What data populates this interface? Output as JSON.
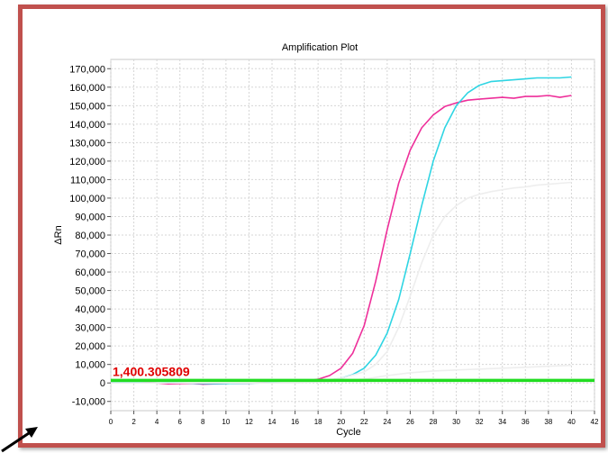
{
  "chart_data": {
    "type": "line",
    "title": "Amplification Plot",
    "xlabel": "Cycle",
    "ylabel": "ΔRn",
    "xlim": [
      0,
      42
    ],
    "ylim": [
      -15000,
      175000
    ],
    "grid": true,
    "x_ticks": [
      0,
      2,
      4,
      6,
      8,
      10,
      12,
      14,
      16,
      18,
      20,
      22,
      24,
      26,
      28,
      30,
      32,
      34,
      36,
      38,
      40,
      42
    ],
    "y_ticks": [
      -10000,
      0,
      10000,
      20000,
      30000,
      40000,
      50000,
      60000,
      70000,
      80000,
      90000,
      100000,
      110000,
      120000,
      130000,
      140000,
      150000,
      160000,
      170000
    ],
    "y_tick_labels": [
      "-10,000",
      "0",
      "10,000",
      "20,000",
      "30,000",
      "40,000",
      "50,000",
      "60,000",
      "70,000",
      "80,000",
      "90,000",
      "100,000",
      "110,000",
      "120,000",
      "130,000",
      "140,000",
      "150,000",
      "160,000",
      "170,000"
    ],
    "threshold": {
      "value": 1400.305809,
      "label": "1,400.305809",
      "color": "#22dd22"
    },
    "series": [
      {
        "color": "#ee2f9a",
        "x": [
          0,
          1,
          2,
          3,
          4,
          5,
          6,
          7,
          8,
          9,
          10,
          11,
          12,
          13,
          14,
          15,
          16,
          17,
          18,
          19,
          20,
          21,
          22,
          23,
          24,
          25,
          26,
          27,
          28,
          29,
          30,
          31,
          32,
          33,
          34,
          35,
          36,
          37,
          38,
          39,
          40
        ],
        "values": [
          500,
          800,
          600,
          300,
          0,
          -500,
          -300,
          -200,
          -700,
          -500,
          -300,
          -200,
          -100,
          100,
          300,
          500,
          700,
          1000,
          2000,
          4000,
          8000,
          16000,
          31000,
          55000,
          83000,
          108000,
          126000,
          138000,
          145000,
          149500,
          151500,
          153000,
          153500,
          154000,
          154500,
          154000,
          155000,
          155000,
          155500,
          154500,
          155500
        ]
      },
      {
        "color": "#2fd5e3",
        "x": [
          0,
          1,
          2,
          3,
          4,
          5,
          6,
          7,
          8,
          9,
          10,
          11,
          12,
          13,
          14,
          15,
          16,
          17,
          18,
          19,
          20,
          21,
          22,
          23,
          24,
          25,
          26,
          27,
          28,
          29,
          30,
          31,
          32,
          33,
          34,
          35,
          36,
          37,
          38,
          39,
          40
        ],
        "values": [
          600,
          400,
          300,
          100,
          0,
          200,
          100,
          -100,
          -300,
          -400,
          -300,
          -200,
          -100,
          0,
          200,
          400,
          600,
          800,
          1000,
          1500,
          2500,
          4500,
          8000,
          15000,
          27000,
          45000,
          70000,
          96000,
          120000,
          138000,
          150000,
          157000,
          161000,
          163000,
          163500,
          164000,
          164500,
          165000,
          165000,
          165000,
          165500
        ]
      },
      {
        "color": "#eeeeee",
        "x": [
          0,
          2,
          4,
          6,
          8,
          10,
          12,
          14,
          16,
          18,
          20,
          22,
          23,
          24,
          25,
          26,
          27,
          28,
          29,
          30,
          31,
          32,
          33,
          34,
          35,
          36,
          37,
          38,
          39,
          40
        ],
        "values": [
          0,
          0,
          0,
          0,
          0,
          0,
          0,
          100,
          300,
          1000,
          2500,
          6000,
          10000,
          17000,
          30000,
          47000,
          65000,
          80000,
          90000,
          96000,
          100000,
          102000,
          103500,
          104500,
          105500,
          106000,
          107000,
          107500,
          108000,
          108500
        ]
      },
      {
        "color": "#eeeeee",
        "x": [
          0,
          4,
          8,
          12,
          16,
          20,
          22,
          24,
          26,
          28,
          30,
          32,
          34,
          36,
          38,
          40
        ],
        "values": [
          0,
          0,
          0,
          0,
          0,
          1000,
          2000,
          4000,
          5500,
          6500,
          7000,
          7500,
          8000,
          8500,
          9000,
          9500
        ]
      }
    ]
  }
}
